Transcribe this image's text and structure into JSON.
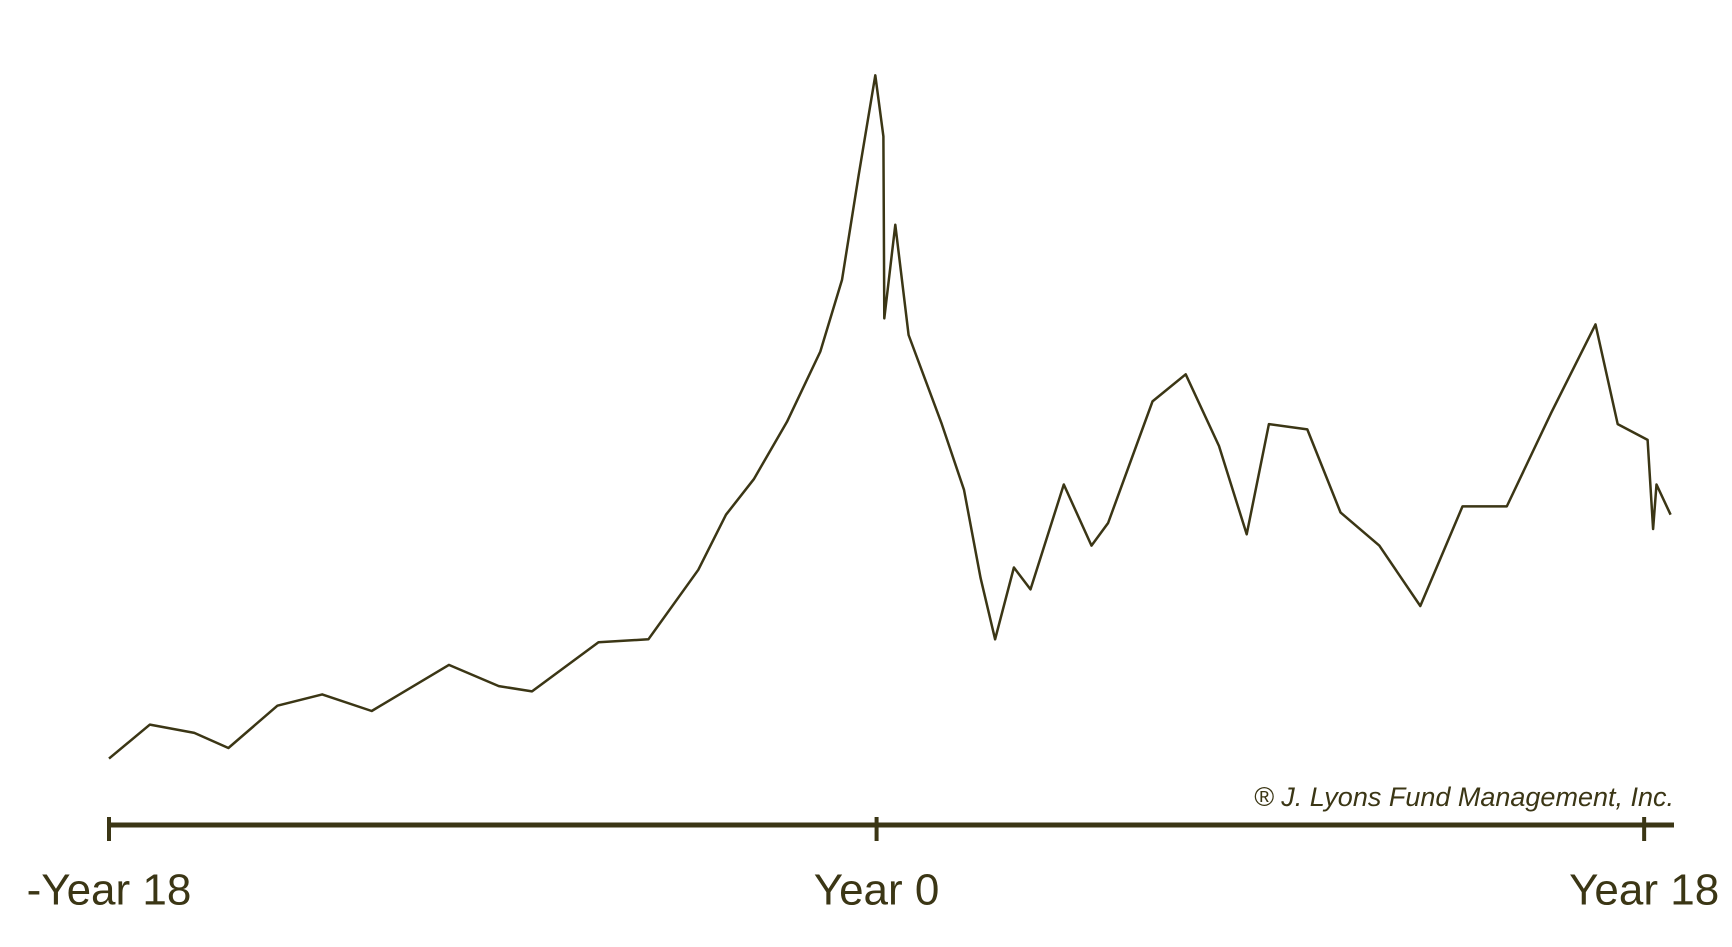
{
  "chart_data": {
    "type": "line",
    "annotation": "® J. Lyons Fund Management, Inc.",
    "color": "#3b3615",
    "x": [
      -18,
      -17.04,
      -16.0,
      -15.2,
      -14.05,
      -13.0,
      -11.84,
      -10.03,
      -8.86,
      -8.08,
      -6.52,
      -5.35,
      -4.18,
      -3.53,
      -2.88,
      -2.1,
      -1.32,
      -0.81,
      -0.42,
      -0.03,
      0.16,
      0.18,
      0.44,
      0.75,
      1.53,
      2.05,
      2.44,
      2.78,
      3.22,
      3.61,
      4.39,
      5.04,
      5.43,
      6.47,
      7.25,
      8.03,
      8.68,
      9.2,
      10.1,
      10.88,
      11.79,
      12.75,
      13.74,
      14.78,
      15.82,
      16.86,
      17.38,
      18.08,
      18.21,
      18.29,
      18.62
    ],
    "values": [
      8.8,
      13.3,
      12.2,
      10.2,
      15.8,
      17.3,
      15.1,
      21.2,
      18.4,
      17.7,
      24.2,
      24.6,
      33.8,
      41.1,
      45.8,
      53.4,
      62.7,
      72.2,
      86.1,
      99.3,
      91.2,
      67.1,
      79.5,
      64.9,
      53.1,
      44.4,
      32.7,
      24.6,
      34.1,
      31.2,
      45.1,
      37.0,
      40.0,
      56.1,
      59.7,
      50.2,
      38.5,
      53.1,
      52.4,
      41.4,
      37.0,
      29.0,
      42.2,
      42.2,
      54.6,
      66.3,
      53.1,
      51.0,
      39.2,
      45.1,
      41.1
    ],
    "xlim": [
      -18,
      18.7
    ],
    "xticks": [
      {
        "value": -18,
        "label": "-Year 18"
      },
      {
        "value": 0,
        "label": "Year 0"
      },
      {
        "value": 18,
        "label": "Year 18"
      }
    ],
    "ylim": [
      0,
      100
    ]
  }
}
